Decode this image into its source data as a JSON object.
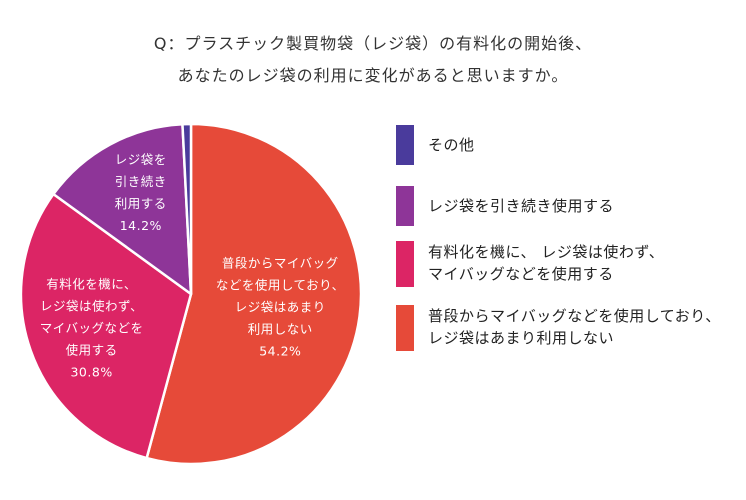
{
  "title": [
    "Q：プラスチック製買物袋（レジ袋）の有料化の開始後、",
    "あなたのレジ袋の利用に変化があると思いますか。"
  ],
  "chart_data": {
    "type": "pie",
    "start_angle_deg": 0,
    "direction": "clockwise",
    "slices": [
      {
        "label_lines": [
          "普段からマイバッグ",
          "などを使用しており、",
          "レジ袋はあまり",
          "利用しない"
        ],
        "value": 54.2,
        "value_text": "54.2%",
        "color": "#e64a39",
        "legend": [
          "普段からマイバッグなどを使用しており、",
          "レジ袋はあまり利用しない"
        ]
      },
      {
        "label_lines": [
          "有料化を機に、",
          "レジ袋は使わず、",
          "マイバッグなどを",
          "使用する"
        ],
        "value": 30.8,
        "value_text": "30.8%",
        "color": "#dc2565",
        "legend": [
          "有料化を機に、 レジ袋は使わず、",
          "マイバッグなどを使用する"
        ]
      },
      {
        "label_lines": [
          "レジ袋を",
          "引き続き",
          "利用する"
        ],
        "value": 14.2,
        "value_text": "14.2%",
        "color": "#8e3598",
        "legend": [
          "レジ袋を引き続き使用する"
        ]
      },
      {
        "label_lines": [],
        "value": 0.8,
        "value_text": "",
        "color": "#4a3b9c",
        "legend": [
          "その他"
        ]
      }
    ],
    "legend_order": [
      3,
      2,
      1,
      0
    ],
    "legend_position": "right"
  }
}
